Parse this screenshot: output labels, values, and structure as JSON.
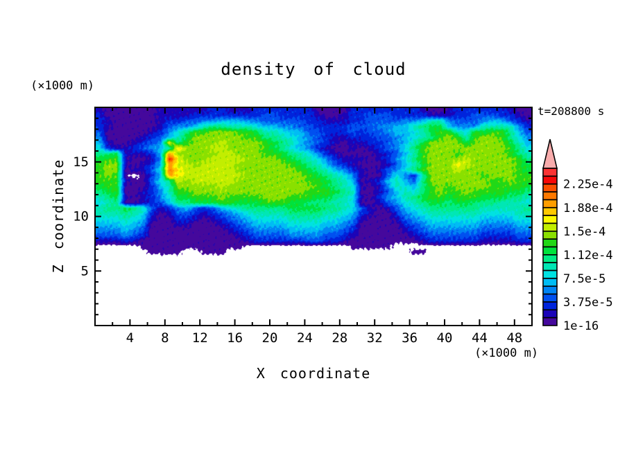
{
  "title": "density of cloud",
  "time_label": "t=208800 s",
  "axes": {
    "x": {
      "label": "X coordinate",
      "unit": "(×1000 m)",
      "major_ticks": [
        4,
        8,
        12,
        16,
        20,
        24,
        28,
        32,
        36,
        40,
        44,
        48
      ],
      "minor_ticks": [
        2,
        6,
        10,
        14,
        18,
        22,
        26,
        30,
        34,
        38,
        42,
        46
      ],
      "range": [
        0,
        50
      ]
    },
    "z": {
      "label": "Z coordinate",
      "unit": "(×1000 m)",
      "major_ticks": [
        5,
        10,
        15
      ],
      "minor_ticks": [
        1,
        2,
        3,
        4,
        6,
        7,
        8,
        9,
        11,
        12,
        13,
        14,
        16,
        17,
        18,
        19
      ],
      "range": [
        0,
        20
      ]
    }
  },
  "colorbar": {
    "labels_top_to_bottom": [
      "2.25e-4",
      "1.88e-4",
      "1.5e-4",
      "1.12e-4",
      "7.5e-5",
      "3.75e-5",
      "1e-16"
    ],
    "label_every_n_boxes": 3,
    "colors_top_to_bottom": [
      "#fb3333",
      "#f70808",
      "#fb4f00",
      "#fe7800",
      "#fe9e00",
      "#fec800",
      "#fcf800",
      "#c2ee00",
      "#8ae000",
      "#22d816",
      "#00e23c",
      "#00ec84",
      "#00e7b4",
      "#00e2e2",
      "#00bcf4",
      "#0084f4",
      "#0050f0",
      "#0024dc",
      "#1b04b8",
      "#45089c"
    ],
    "overflow_arrow_color": "#f8acac",
    "outline_color": "#000000"
  },
  "chart_data": {
    "type": "heatmap",
    "title": "density of cloud",
    "xlabel": "X coordinate (×1000 m)",
    "ylabel": "Z coordinate (×1000 m)",
    "time": "t=208800 s",
    "x_range": [
      0,
      50
    ],
    "z_range": [
      0,
      20
    ],
    "contour_level_labels": [
      "1e-16",
      "3.75e-5",
      "7.5e-5",
      "1.12e-4",
      "1.5e-4",
      "1.88e-4",
      "2.25e-4"
    ],
    "level_step_between_boxes": "1.25e-5",
    "n_levels": 20,
    "grid_note": "40 rows, top row is z=19.5-20 down to z=0-0.5 (0.5 km per row) x 50 columns (x=0..50 km). '.'=no cloud (white); 1=lowest density (1e-16 bin, dark violet) up through 9,a,b..k=20 (red, >2.25e-4).",
    "grid_rows": [
      "21111112222223322233333331111333333332112333333211",
      "31111112222333333334433332112334443333222334443321",
      "32111112334455666554444433222334444556885444566432",
      "32111112455689988876655443333444556689aa6555888853",
      "41111123579bbcccbba8876644333434456678abb87babb964",
      "5111123468accccccbb99876543223334456789bcb8bccb975",
      "62112345e9bcccdccccba9865432122334568accccacccca86",
      "732234568fcccddccccba9765321121234579bcccccccccb97",
      "99a22236gcccccddcccbba987532111123468bcccbcccccb98",
      "abb21125jecccddddccccba98753222123579bccccdcccccb9",
      "bcc21236gddcddddccccccba9864321112468acccedcccccba",
      "bcc12247heddddddcccccccba986532124579bcccdccccccba",
      "bcb1.136gedddddddcccccccba987521147538ccccccbcccbb",
      "bbb211479dcdddddccccccccbba98612368649cccccccbbcbb",
      "abb111368cccccdccccccccccba98721258769bcbccccbbbba",
      "9ab112358bbcccccccccccccbbba9811246879bcbbcbbbbaa9",
      "89a212357aabbbcbbbbcccbbbaa9872135689abbabbbaaa998",
      "78911234699aaabbaaabbbaa99988711245789aa9aa9998887",
      "899a984235643467899999aaaa998742124678999999888889",
      "88898731244323456788889999887632113567888888777788",
      "77787621133212345677778888776521112456777777666677",
      "66676511122111234566667777665411111345666666555566",
      "55565411111111123455556666554311111234555555444455",
      "44454311111111112344445555443211111123444444333344",
      "22232111111111111233333344332111111112333333222233",
      ".....111111111111............11111................",
      "......1111..111.....................11............",
      "..................................................",
      "..................................................",
      "..................................................",
      "..................................................",
      "..................................................",
      "..................................................",
      "..................................................",
      "..................................................",
      "..................................................",
      "..................................................",
      "..................................................",
      "..................................................",
      ".................................................."
    ]
  }
}
